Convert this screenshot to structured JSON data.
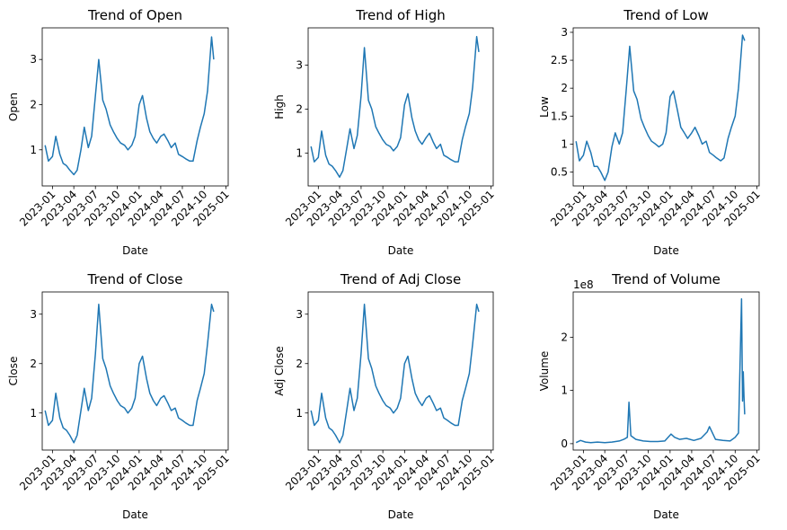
{
  "chart_data": [
    {
      "type": "line",
      "title": "Trend of Open",
      "xlabel": "Date",
      "ylabel": "Open",
      "xlim": [
        "2022-11-19",
        "2025-01-10"
      ],
      "ylim": [
        0.2,
        3.7
      ],
      "xticks": [
        "2023-01",
        "2023-04",
        "2023-07",
        "2023-10",
        "2024-01",
        "2024-04",
        "2024-07",
        "2024-10",
        "2025-01"
      ],
      "yticks": [
        1,
        2,
        3
      ],
      "grid": false,
      "color": "#1f77b4",
      "x": [
        "2022-12-01",
        "2022-12-15",
        "2023-01-01",
        "2023-01-15",
        "2023-02-01",
        "2023-02-15",
        "2023-03-01",
        "2023-03-15",
        "2023-04-01",
        "2023-04-15",
        "2023-05-01",
        "2023-05-15",
        "2023-06-01",
        "2023-06-15",
        "2023-07-01",
        "2023-07-15",
        "2023-08-01",
        "2023-08-15",
        "2023-09-01",
        "2023-09-15",
        "2023-10-01",
        "2023-10-15",
        "2023-11-01",
        "2023-11-15",
        "2023-12-01",
        "2023-12-15",
        "2024-01-01",
        "2024-01-15",
        "2024-02-01",
        "2024-02-15",
        "2024-03-01",
        "2024-03-15",
        "2024-04-01",
        "2024-04-15",
        "2024-05-01",
        "2024-05-15",
        "2024-06-01",
        "2024-06-15",
        "2024-07-01",
        "2024-07-15",
        "2024-08-01",
        "2024-08-15",
        "2024-09-01",
        "2024-09-15",
        "2024-10-01",
        "2024-10-15",
        "2024-11-01",
        "2024-11-10"
      ],
      "values": [
        1.1,
        0.75,
        0.85,
        1.3,
        0.9,
        0.7,
        0.65,
        0.55,
        0.45,
        0.55,
        1.0,
        1.5,
        1.05,
        1.3,
        2.2,
        3.0,
        2.1,
        1.9,
        1.55,
        1.4,
        1.25,
        1.15,
        1.1,
        1.0,
        1.1,
        1.3,
        2.0,
        2.2,
        1.7,
        1.4,
        1.25,
        1.15,
        1.3,
        1.35,
        1.2,
        1.05,
        1.15,
        0.9,
        0.85,
        0.8,
        0.75,
        0.75,
        1.2,
        1.5,
        1.8,
        2.3,
        3.5,
        3.0
      ]
    },
    {
      "type": "line",
      "title": "Trend of High",
      "xlabel": "Date",
      "ylabel": "High",
      "xlim": [
        "2022-11-19",
        "2025-01-10"
      ],
      "ylim": [
        0.25,
        3.85
      ],
      "xticks": [
        "2023-01",
        "2023-04",
        "2023-07",
        "2023-10",
        "2024-01",
        "2024-04",
        "2024-07",
        "2024-10",
        "2025-01"
      ],
      "yticks": [
        1,
        2,
        3
      ],
      "grid": false,
      "color": "#1f77b4",
      "x": [
        "2022-12-01",
        "2022-12-15",
        "2023-01-01",
        "2023-01-15",
        "2023-02-01",
        "2023-02-15",
        "2023-03-01",
        "2023-03-15",
        "2023-04-01",
        "2023-04-15",
        "2023-05-01",
        "2023-05-15",
        "2023-06-01",
        "2023-06-15",
        "2023-07-01",
        "2023-07-15",
        "2023-08-01",
        "2023-08-15",
        "2023-09-01",
        "2023-09-15",
        "2023-10-01",
        "2023-10-15",
        "2023-11-01",
        "2023-11-15",
        "2023-12-01",
        "2023-12-15",
        "2024-01-01",
        "2024-01-15",
        "2024-02-01",
        "2024-02-15",
        "2024-03-01",
        "2024-03-15",
        "2024-04-01",
        "2024-04-15",
        "2024-05-01",
        "2024-05-15",
        "2024-06-01",
        "2024-06-15",
        "2024-07-01",
        "2024-07-15",
        "2024-08-01",
        "2024-08-15",
        "2024-09-01",
        "2024-09-15",
        "2024-10-01",
        "2024-10-15",
        "2024-11-01",
        "2024-11-10"
      ],
      "values": [
        1.15,
        0.8,
        0.9,
        1.5,
        0.95,
        0.75,
        0.7,
        0.6,
        0.45,
        0.6,
        1.1,
        1.55,
        1.1,
        1.4,
        2.3,
        3.4,
        2.2,
        2.0,
        1.6,
        1.45,
        1.3,
        1.2,
        1.15,
        1.05,
        1.15,
        1.35,
        2.1,
        2.35,
        1.8,
        1.5,
        1.3,
        1.2,
        1.35,
        1.45,
        1.25,
        1.1,
        1.2,
        0.95,
        0.9,
        0.85,
        0.8,
        0.8,
        1.3,
        1.6,
        1.9,
        2.5,
        3.65,
        3.3
      ]
    },
    {
      "type": "line",
      "title": "Trend of Low",
      "xlabel": "Date",
      "ylabel": "Low",
      "xlim": [
        "2022-11-19",
        "2025-01-10"
      ],
      "ylim": [
        0.25,
        3.08
      ],
      "xticks": [
        "2023-01",
        "2023-04",
        "2023-07",
        "2023-10",
        "2024-01",
        "2024-04",
        "2024-07",
        "2024-10",
        "2025-01"
      ],
      "yticks": [
        0.5,
        1.0,
        1.5,
        2.0,
        2.5,
        3.0
      ],
      "grid": false,
      "color": "#1f77b4",
      "x": [
        "2022-12-01",
        "2022-12-15",
        "2023-01-01",
        "2023-01-15",
        "2023-02-01",
        "2023-02-15",
        "2023-03-01",
        "2023-03-15",
        "2023-04-01",
        "2023-04-15",
        "2023-05-01",
        "2023-05-15",
        "2023-06-01",
        "2023-06-15",
        "2023-07-01",
        "2023-07-15",
        "2023-08-01",
        "2023-08-15",
        "2023-09-01",
        "2023-09-15",
        "2023-10-01",
        "2023-10-15",
        "2023-11-01",
        "2023-11-15",
        "2023-12-01",
        "2023-12-15",
        "2024-01-01",
        "2024-01-15",
        "2024-02-01",
        "2024-02-15",
        "2024-03-01",
        "2024-03-15",
        "2024-04-01",
        "2024-04-15",
        "2024-05-01",
        "2024-05-15",
        "2024-06-01",
        "2024-06-15",
        "2024-07-01",
        "2024-07-15",
        "2024-08-01",
        "2024-08-15",
        "2024-09-01",
        "2024-09-15",
        "2024-10-01",
        "2024-10-15",
        "2024-11-01",
        "2024-11-10"
      ],
      "values": [
        1.05,
        0.7,
        0.8,
        1.05,
        0.85,
        0.6,
        0.6,
        0.5,
        0.35,
        0.5,
        0.95,
        1.2,
        1.0,
        1.2,
        2.0,
        2.75,
        1.95,
        1.8,
        1.45,
        1.3,
        1.15,
        1.05,
        1.0,
        0.95,
        1.0,
        1.2,
        1.85,
        1.95,
        1.6,
        1.3,
        1.2,
        1.1,
        1.2,
        1.3,
        1.15,
        1.0,
        1.05,
        0.85,
        0.8,
        0.75,
        0.7,
        0.75,
        1.1,
        1.3,
        1.5,
        2.0,
        2.95,
        2.85
      ]
    },
    {
      "type": "line",
      "title": "Trend of Close",
      "xlabel": "Date",
      "ylabel": "Close",
      "xlim": [
        "2022-11-19",
        "2025-01-10"
      ],
      "ylim": [
        0.25,
        3.45
      ],
      "xticks": [
        "2023-01",
        "2023-04",
        "2023-07",
        "2023-10",
        "2024-01",
        "2024-04",
        "2024-07",
        "2024-10",
        "2025-01"
      ],
      "yticks": [
        1,
        2,
        3
      ],
      "grid": false,
      "color": "#1f77b4",
      "x": [
        "2022-12-01",
        "2022-12-15",
        "2023-01-01",
        "2023-01-15",
        "2023-02-01",
        "2023-02-15",
        "2023-03-01",
        "2023-03-15",
        "2023-04-01",
        "2023-04-15",
        "2023-05-01",
        "2023-05-15",
        "2023-06-01",
        "2023-06-15",
        "2023-07-01",
        "2023-07-15",
        "2023-08-01",
        "2023-08-15",
        "2023-09-01",
        "2023-09-15",
        "2023-10-01",
        "2023-10-15",
        "2023-11-01",
        "2023-11-15",
        "2023-12-01",
        "2023-12-15",
        "2024-01-01",
        "2024-01-15",
        "2024-02-01",
        "2024-02-15",
        "2024-03-01",
        "2024-03-15",
        "2024-04-01",
        "2024-04-15",
        "2024-05-01",
        "2024-05-15",
        "2024-06-01",
        "2024-06-15",
        "2024-07-01",
        "2024-07-15",
        "2024-08-01",
        "2024-08-15",
        "2024-09-01",
        "2024-09-15",
        "2024-10-01",
        "2024-10-15",
        "2024-11-01",
        "2024-11-10"
      ],
      "values": [
        1.05,
        0.75,
        0.85,
        1.4,
        0.9,
        0.7,
        0.65,
        0.55,
        0.4,
        0.55,
        1.05,
        1.5,
        1.05,
        1.3,
        2.2,
        3.2,
        2.1,
        1.9,
        1.55,
        1.4,
        1.25,
        1.15,
        1.1,
        1.0,
        1.1,
        1.3,
        2.0,
        2.15,
        1.7,
        1.4,
        1.25,
        1.15,
        1.3,
        1.35,
        1.2,
        1.05,
        1.1,
        0.9,
        0.85,
        0.8,
        0.75,
        0.75,
        1.25,
        1.5,
        1.8,
        2.4,
        3.2,
        3.05
      ]
    },
    {
      "type": "line",
      "title": "Trend of Adj Close",
      "xlabel": "Date",
      "ylabel": "Adj Close",
      "xlim": [
        "2022-11-19",
        "2025-01-10"
      ],
      "ylim": [
        0.25,
        3.45
      ],
      "xticks": [
        "2023-01",
        "2023-04",
        "2023-07",
        "2023-10",
        "2024-01",
        "2024-04",
        "2024-07",
        "2024-10",
        "2025-01"
      ],
      "yticks": [
        1,
        2,
        3
      ],
      "grid": false,
      "color": "#1f77b4",
      "x": [
        "2022-12-01",
        "2022-12-15",
        "2023-01-01",
        "2023-01-15",
        "2023-02-01",
        "2023-02-15",
        "2023-03-01",
        "2023-03-15",
        "2023-04-01",
        "2023-04-15",
        "2023-05-01",
        "2023-05-15",
        "2023-06-01",
        "2023-06-15",
        "2023-07-01",
        "2023-07-15",
        "2023-08-01",
        "2023-08-15",
        "2023-09-01",
        "2023-09-15",
        "2023-10-01",
        "2023-10-15",
        "2023-11-01",
        "2023-11-15",
        "2023-12-01",
        "2023-12-15",
        "2024-01-01",
        "2024-01-15",
        "2024-02-01",
        "2024-02-15",
        "2024-03-01",
        "2024-03-15",
        "2024-04-01",
        "2024-04-15",
        "2024-05-01",
        "2024-05-15",
        "2024-06-01",
        "2024-06-15",
        "2024-07-01",
        "2024-07-15",
        "2024-08-01",
        "2024-08-15",
        "2024-09-01",
        "2024-09-15",
        "2024-10-01",
        "2024-10-15",
        "2024-11-01",
        "2024-11-10"
      ],
      "values": [
        1.05,
        0.75,
        0.85,
        1.4,
        0.9,
        0.7,
        0.65,
        0.55,
        0.4,
        0.55,
        1.05,
        1.5,
        1.05,
        1.3,
        2.2,
        3.2,
        2.1,
        1.9,
        1.55,
        1.4,
        1.25,
        1.15,
        1.1,
        1.0,
        1.1,
        1.3,
        2.0,
        2.15,
        1.7,
        1.4,
        1.25,
        1.15,
        1.3,
        1.35,
        1.2,
        1.05,
        1.1,
        0.9,
        0.85,
        0.8,
        0.75,
        0.75,
        1.25,
        1.5,
        1.8,
        2.4,
        3.2,
        3.05
      ]
    },
    {
      "type": "line",
      "title": "Trend of Volume",
      "xlabel": "Date",
      "ylabel": "Volume",
      "offset_text": "1e8",
      "xlim": [
        "2022-11-19",
        "2025-01-10"
      ],
      "ylim": [
        -0.12,
        2.85
      ],
      "xticks": [
        "2023-01",
        "2023-04",
        "2023-07",
        "2023-10",
        "2024-01",
        "2024-04",
        "2024-07",
        "2024-10",
        "2025-01"
      ],
      "yticks": [
        0,
        1,
        2
      ],
      "grid": false,
      "color": "#1f77b4",
      "x": [
        "2022-12-01",
        "2022-12-20",
        "2023-01-10",
        "2023-02-01",
        "2023-03-01",
        "2023-04-01",
        "2023-05-01",
        "2023-06-01",
        "2023-06-20",
        "2023-07-05",
        "2023-07-12",
        "2023-07-20",
        "2023-08-10",
        "2023-09-10",
        "2023-10-10",
        "2023-11-10",
        "2023-12-10",
        "2024-01-05",
        "2024-01-20",
        "2024-02-10",
        "2024-03-10",
        "2024-04-10",
        "2024-05-10",
        "2024-06-05",
        "2024-06-15",
        "2024-07-10",
        "2024-08-10",
        "2024-09-10",
        "2024-10-01",
        "2024-10-15",
        "2024-10-28",
        "2024-11-01",
        "2024-11-04",
        "2024-11-07",
        "2024-11-10"
      ],
      "values": [
        0.02,
        0.06,
        0.03,
        0.02,
        0.03,
        0.02,
        0.03,
        0.05,
        0.08,
        0.12,
        0.78,
        0.15,
        0.08,
        0.05,
        0.04,
        0.04,
        0.05,
        0.18,
        0.12,
        0.08,
        0.1,
        0.06,
        0.1,
        0.22,
        0.32,
        0.08,
        0.06,
        0.05,
        0.12,
        0.2,
        2.72,
        0.8,
        1.35,
        0.9,
        0.55
      ]
    }
  ]
}
